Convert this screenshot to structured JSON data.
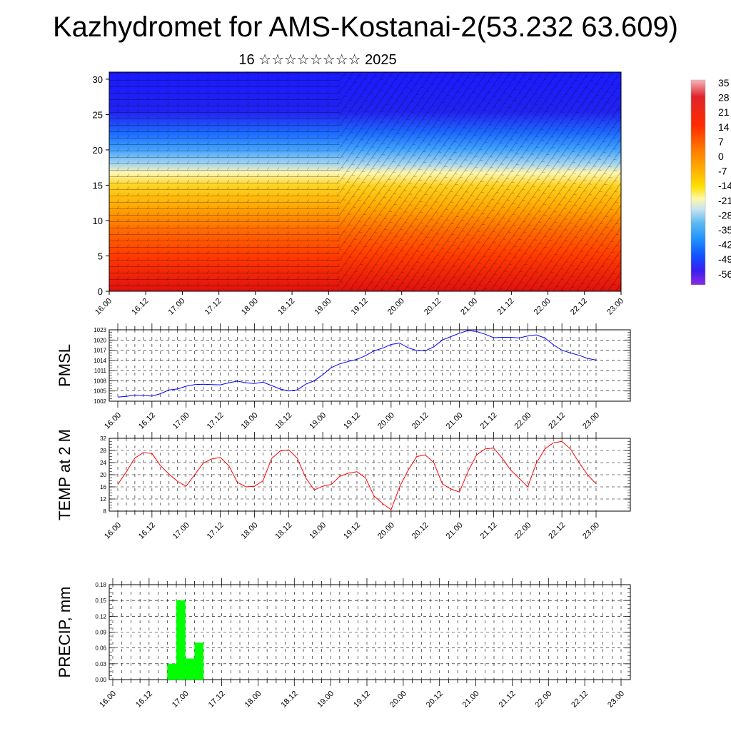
{
  "page": {
    "title": "Kazhydromet for AMS-Kostanai-2(53.232 63.609)",
    "subtitle": "16 ☆☆☆☆☆☆☆☆ 2025"
  },
  "chart_data": [
    {
      "type": "heatmap",
      "description_note": "",
      "yticks": [
        0,
        5,
        10,
        15,
        20,
        25,
        30
      ],
      "ylim": [
        0,
        31
      ],
      "xticks": [
        "16.00",
        "16.12",
        "17.00",
        "17.12",
        "18.00",
        "18.12",
        "19.00",
        "19.12",
        "20.00",
        "20.12",
        "21.00",
        "21.12",
        "22.00",
        "22.12",
        "23.00"
      ],
      "colorbar": {
        "labels": [
          "35",
          "28",
          "21",
          "14",
          "7",
          "0",
          "-7",
          "-14",
          "-21",
          "-28",
          "-35",
          "-42",
          "-49",
          "-56"
        ],
        "colors": [
          "#f2b8b8",
          "#e41a1c",
          "#d7191c",
          "#ff3300",
          "#ff6600",
          "#ff9900",
          "#ffcc00",
          "#ffff99",
          "#c6dbef",
          "#6baed6",
          "#1e90ff",
          "#0050ff",
          "#2020ff",
          "#7b2be2"
        ]
      }
    },
    {
      "type": "line",
      "ylabel": "PMSL",
      "yticks": [
        1002,
        1005,
        1008,
        1011,
        1014,
        1017,
        1020,
        1023
      ],
      "ylim": [
        1002,
        1023
      ],
      "xticks": [
        "16.00",
        "16.12",
        "17.00",
        "17.12",
        "18.00",
        "18.12",
        "19.00",
        "19.12",
        "20.00",
        "20.12",
        "21.00",
        "21.12",
        "22.00",
        "22.12",
        "23.00"
      ],
      "x_hours": [
        0,
        3,
        6,
        9,
        12,
        15,
        18,
        21,
        24,
        27,
        30,
        33,
        36,
        39,
        42,
        45,
        48,
        51,
        54,
        57,
        60,
        63,
        66,
        69,
        72,
        75,
        78,
        81,
        84,
        87,
        90,
        93,
        96,
        99,
        102,
        105,
        108,
        111,
        114,
        117,
        120,
        123,
        126,
        129,
        132,
        135,
        138,
        141,
        144,
        147,
        150,
        153,
        156,
        159,
        162,
        165,
        168
      ],
      "values": [
        1003.2,
        1003.4,
        1003.8,
        1003.7,
        1003.5,
        1004.2,
        1005.3,
        1005.6,
        1006.4,
        1006.9,
        1007.0,
        1006.9,
        1006.8,
        1007.4,
        1007.9,
        1007.4,
        1007.2,
        1007.6,
        1006.6,
        1005.6,
        1005.0,
        1005.3,
        1007.0,
        1008.0,
        1009.8,
        1011.9,
        1013.0,
        1013.7,
        1014.3,
        1015.4,
        1016.8,
        1017.6,
        1018.7,
        1019.1,
        1017.7,
        1016.9,
        1016.8,
        1018.0,
        1020.0,
        1021.0,
        1022.0,
        1022.8,
        1022.5,
        1021.7,
        1020.7,
        1020.8,
        1020.8,
        1020.6,
        1021.2,
        1021.5,
        1020.6,
        1018.6,
        1017.0,
        1016.2,
        1015.5,
        1014.6,
        1014.1
      ],
      "color": "#0000ff"
    },
    {
      "type": "line",
      "ylabel": "TEMP at 2 M",
      "yticks": [
        8,
        12,
        16,
        20,
        24,
        28,
        32
      ],
      "ylim": [
        8,
        32
      ],
      "xticks": [
        "16.00",
        "16.12",
        "17.00",
        "17.12",
        "18.00",
        "18.12",
        "19.00",
        "19.12",
        "20.00",
        "20.12",
        "21.00",
        "21.12",
        "22.00",
        "22.12",
        "23.00"
      ],
      "x_hours": [
        0,
        3,
        6,
        9,
        12,
        15,
        18,
        21,
        24,
        27,
        30,
        33,
        36,
        39,
        42,
        45,
        48,
        51,
        54,
        57,
        60,
        63,
        66,
        69,
        72,
        75,
        78,
        81,
        84,
        87,
        90,
        93,
        96,
        99,
        102,
        105,
        108,
        111,
        114,
        117,
        120,
        123,
        126,
        129,
        132,
        135,
        138,
        141,
        144,
        147,
        150,
        153,
        156,
        159,
        162,
        165,
        168
      ],
      "values": [
        16.8,
        21.0,
        25.5,
        27.3,
        27.0,
        23.0,
        20.2,
        17.8,
        16.2,
        20.0,
        23.8,
        25.2,
        25.7,
        23.0,
        17.5,
        16.0,
        16.2,
        18.0,
        25.3,
        27.8,
        28.2,
        25.5,
        19.0,
        15.0,
        16.2,
        16.8,
        19.5,
        20.5,
        21.0,
        19.0,
        13.0,
        10.5,
        8.5,
        16.0,
        21.5,
        26.0,
        26.5,
        24.0,
        17.0,
        15.3,
        14.3,
        21.0,
        26.5,
        28.5,
        28.8,
        25.5,
        21.5,
        18.8,
        16.0,
        23.8,
        28.5,
        30.5,
        31.0,
        28.5,
        24.0,
        20.0,
        17.0
      ],
      "color": "#ff0000"
    },
    {
      "type": "bar",
      "ylabel": "PRECIP, mm",
      "yticks": [
        "0.00",
        "0.03",
        "0.06",
        "0.09",
        "0.12",
        "0.15",
        "0.18"
      ],
      "ylim": [
        0,
        0.18
      ],
      "xticks": [
        "16.00",
        "16.12",
        "17.00",
        "17.12",
        "18.00",
        "18.12",
        "19.00",
        "19.12",
        "20.00",
        "20.12",
        "21.00",
        "21.12",
        "22.00",
        "22.12",
        "23.00"
      ],
      "bars_start_hour": [
        18,
        21,
        24,
        27
      ],
      "bar_width_hours": 3,
      "values": [
        0.03,
        0.15,
        0.04,
        0.07
      ],
      "color": "#00ff00"
    }
  ]
}
